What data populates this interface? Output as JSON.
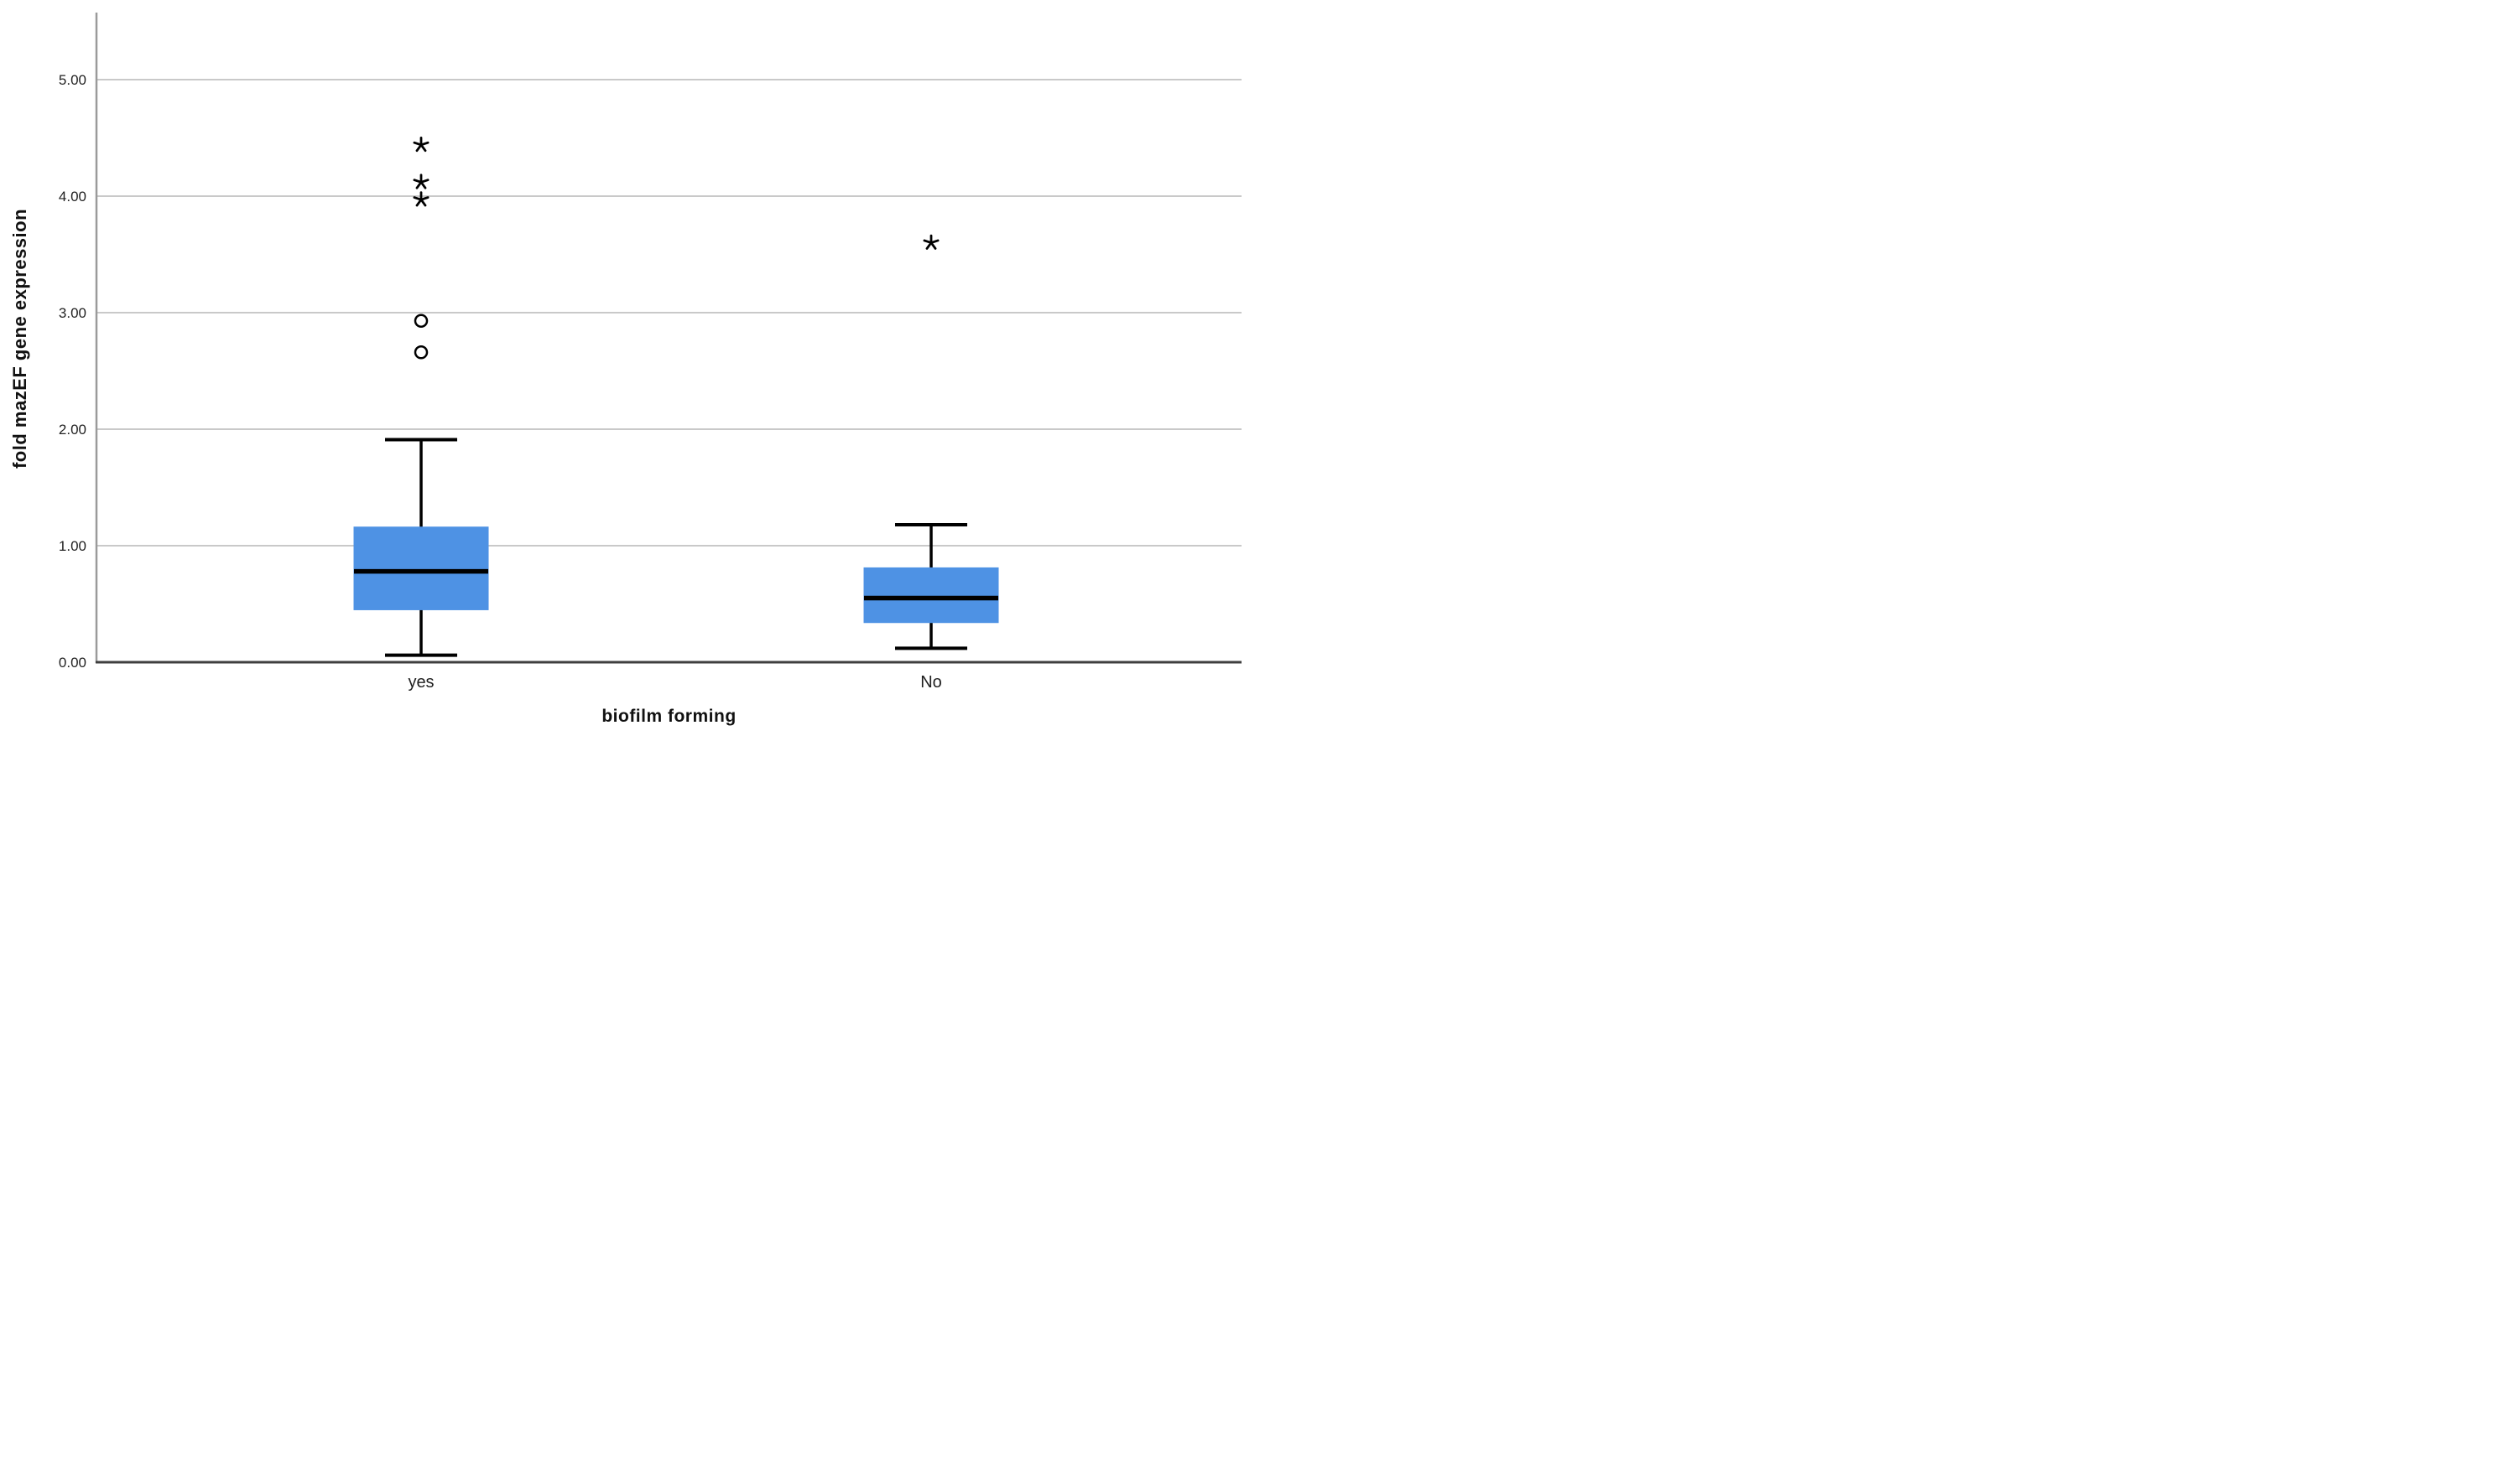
{
  "chart_data": {
    "type": "boxplot",
    "title": "",
    "xlabel": "biofilm forming",
    "ylabel": "fold mazEF gene expression",
    "categories": [
      "yes",
      "No"
    ],
    "y_ticks": [
      "0.00",
      "1.00",
      "2.00",
      "3.00",
      "4.00",
      "5.00"
    ],
    "y_tick_values": [
      0,
      1,
      2,
      3,
      4,
      5
    ],
    "ylim": [
      0,
      5.6
    ],
    "grid": "horizontal-gridlines-on",
    "legend": "none",
    "series": [
      {
        "name": "yes",
        "whisker_low": 0.06,
        "q1": 0.45,
        "median": 0.78,
        "q3": 1.16,
        "whisker_high": 1.91,
        "outliers_circle": [
          2.66,
          2.93
        ],
        "outliers_asterisk": [
          3.97,
          4.12,
          4.44
        ]
      },
      {
        "name": "No",
        "whisker_low": 0.12,
        "q1": 0.34,
        "median": 0.55,
        "q3": 0.81,
        "whisker_high": 1.18,
        "outliers_circle": [],
        "outliers_asterisk": [
          3.6
        ]
      }
    ],
    "markers": {
      "circle": "mild-outlier",
      "asterisk": "extreme-outlier"
    },
    "colors": {
      "box_fill": "#4E92E4",
      "box_edge": "#4E92E4",
      "line": "#000000",
      "gridline": "#C9C9C9",
      "x_axis_line": "#3F3F3F",
      "y_axis_line": "#9A9A9A",
      "text": "#1F1F1F"
    }
  }
}
